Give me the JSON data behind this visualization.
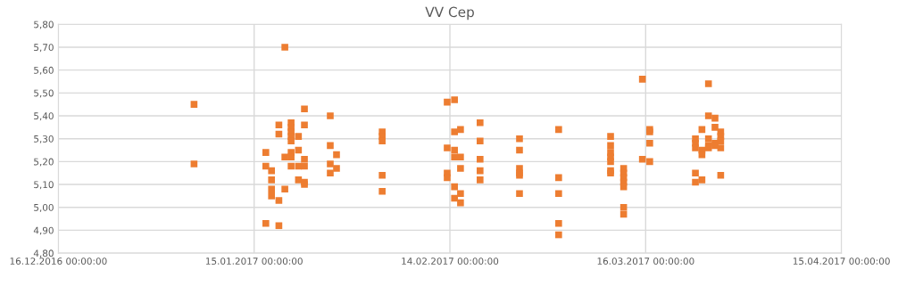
{
  "chart_data": {
    "type": "scatter",
    "title": "VV Cep",
    "xlim": [
      "2016-12-16",
      "2017-04-15"
    ],
    "xticks": [
      {
        "value": "2016-12-16",
        "label": "16.12.2016 00:00:00"
      },
      {
        "value": "2017-01-15",
        "label": "15.01.2017 00:00:00"
      },
      {
        "value": "2017-02-14",
        "label": "14.02.2017 00:00:00"
      },
      {
        "value": "2017-03-16",
        "label": "16.03.2017 00:00:00"
      },
      {
        "value": "2017-04-15",
        "label": "15.04.2017 00:00:00"
      }
    ],
    "ylim": [
      4.8,
      5.8
    ],
    "yticks": [
      {
        "value": 4.8,
        "label": "4,80"
      },
      {
        "value": 4.9,
        "label": "4,90"
      },
      {
        "value": 5.0,
        "label": "5,00"
      },
      {
        "value": 5.1,
        "label": "5,10"
      },
      {
        "value": 5.2,
        "label": "5,20"
      },
      {
        "value": 5.3,
        "label": "5,30"
      },
      {
        "value": 5.4,
        "label": "5,40"
      },
      {
        "value": 5.5,
        "label": "5,50"
      },
      {
        "value": 5.6,
        "label": "5,60"
      },
      {
        "value": 5.7,
        "label": "5,70"
      },
      {
        "value": 5.8,
        "label": "5,80"
      }
    ],
    "grid": true,
    "marker": "square",
    "legend": false,
    "series": [
      {
        "color": "#ed7d31",
        "x": [
          "2017-01-05T19:00",
          "2017-01-05T19:00",
          "2017-01-16T19:00",
          "2017-01-16T19:00",
          "2017-01-16T19:00",
          "2017-01-18T19:00",
          "2017-01-18T19:00",
          "2017-01-18T19:00",
          "2017-01-18T19:00",
          "2017-01-17T16:00",
          "2017-01-17T16:00",
          "2017-01-17T16:00",
          "2017-01-17T16:00",
          "2017-01-19T17:00",
          "2017-01-19T17:00",
          "2017-01-19T17:00",
          "2017-01-20T16:00",
          "2017-01-20T16:00",
          "2017-01-20T16:00",
          "2017-01-20T16:00",
          "2017-01-20T16:00",
          "2017-01-20T16:00",
          "2017-01-20T16:00",
          "2017-01-20T16:00",
          "2017-01-21T19:00",
          "2017-01-21T19:00",
          "2017-01-21T19:00",
          "2017-01-21T19:00",
          "2017-01-22T17:00",
          "2017-01-22T17:00",
          "2017-01-22T17:00",
          "2017-01-22T17:00",
          "2017-01-22T17:00",
          "2017-01-22T17:00",
          "2017-01-26T16:00",
          "2017-01-26T16:00",
          "2017-01-26T16:00",
          "2017-01-26T16:00",
          "2017-01-27T15:00",
          "2017-01-27T15:00",
          "2017-02-03T15:00",
          "2017-02-03T15:00",
          "2017-02-03T15:00",
          "2017-02-03T15:00",
          "2017-02-03T15:00",
          "2017-02-13T14:00",
          "2017-02-13T14:00",
          "2017-02-13T14:00",
          "2017-02-13T14:00",
          "2017-02-14T17:00",
          "2017-02-14T17:00",
          "2017-02-14T17:00",
          "2017-02-14T17:00",
          "2017-02-14T17:00",
          "2017-02-14T17:00",
          "2017-02-15T15:00",
          "2017-02-15T15:00",
          "2017-02-15T15:00",
          "2017-02-15T15:00",
          "2017-02-15T15:00",
          "2017-02-18T15:00",
          "2017-02-18T15:00",
          "2017-02-18T15:00",
          "2017-02-18T15:00",
          "2017-02-18T15:00",
          "2017-02-24T16:00",
          "2017-02-24T16:00",
          "2017-02-24T16:00",
          "2017-02-24T16:00",
          "2017-02-24T16:00",
          "2017-02-24T16:00",
          "2017-03-02T16:00",
          "2017-03-02T16:00",
          "2017-03-02T16:00",
          "2017-03-02T16:00",
          "2017-03-02T16:00",
          "2017-03-10T15:00",
          "2017-03-10T15:00",
          "2017-03-10T15:00",
          "2017-03-10T15:00",
          "2017-03-10T15:00",
          "2017-03-10T15:00",
          "2017-03-10T15:00",
          "2017-03-12T15:00",
          "2017-03-12T15:00",
          "2017-03-12T15:00",
          "2017-03-12T15:00",
          "2017-03-12T15:00",
          "2017-03-12T15:00",
          "2017-03-12T15:00",
          "2017-03-15T12:00",
          "2017-03-15T12:00",
          "2017-03-16T15:00",
          "2017-03-16T15:00",
          "2017-03-16T15:00",
          "2017-03-16T15:00",
          "2017-03-23T15:00",
          "2017-03-23T15:00",
          "2017-03-23T15:00",
          "2017-03-23T15:00",
          "2017-03-23T15:00",
          "2017-03-24T15:00",
          "2017-03-24T15:00",
          "2017-03-24T15:00",
          "2017-03-24T15:00",
          "2017-03-25T15:00",
          "2017-03-25T15:00",
          "2017-03-25T15:00",
          "2017-03-25T15:00",
          "2017-03-25T15:00",
          "2017-03-26T15:00",
          "2017-03-26T15:00",
          "2017-03-26T15:00",
          "2017-03-26T15:00",
          "2017-03-27T12:00",
          "2017-03-27T12:00",
          "2017-03-27T12:00",
          "2017-03-27T12:00",
          "2017-03-27T12:00"
        ],
        "values": [
          5.45,
          5.19,
          5.24,
          5.18,
          4.93,
          5.36,
          5.32,
          5.03,
          4.92,
          5.16,
          5.12,
          5.08,
          5.05,
          5.7,
          5.22,
          5.08,
          5.37,
          5.35,
          5.33,
          5.31,
          5.29,
          5.24,
          5.22,
          5.18,
          5.31,
          5.25,
          5.18,
          5.12,
          5.43,
          5.36,
          5.21,
          5.18,
          5.11,
          5.1,
          5.4,
          5.27,
          5.19,
          5.15,
          5.23,
          5.17,
          5.33,
          5.31,
          5.29,
          5.14,
          5.07,
          5.46,
          5.26,
          5.15,
          5.13,
          5.47,
          5.33,
          5.25,
          5.22,
          5.09,
          5.04,
          5.34,
          5.22,
          5.17,
          5.06,
          5.02,
          5.37,
          5.29,
          5.21,
          5.16,
          5.12,
          5.3,
          5.25,
          5.17,
          5.15,
          5.14,
          5.06,
          5.34,
          5.13,
          5.06,
          4.93,
          4.88,
          5.31,
          5.27,
          5.24,
          5.22,
          5.2,
          5.16,
          5.15,
          5.17,
          5.15,
          5.13,
          5.11,
          5.09,
          5.0,
          4.97,
          5.56,
          5.21,
          5.34,
          5.33,
          5.28,
          5.2,
          5.3,
          5.28,
          5.26,
          5.15,
          5.11,
          5.34,
          5.25,
          5.23,
          5.12,
          5.54,
          5.4,
          5.3,
          5.27,
          5.26,
          5.39,
          5.35,
          5.28,
          5.27,
          5.33,
          5.31,
          5.29,
          5.26,
          5.14
        ]
      }
    ]
  }
}
